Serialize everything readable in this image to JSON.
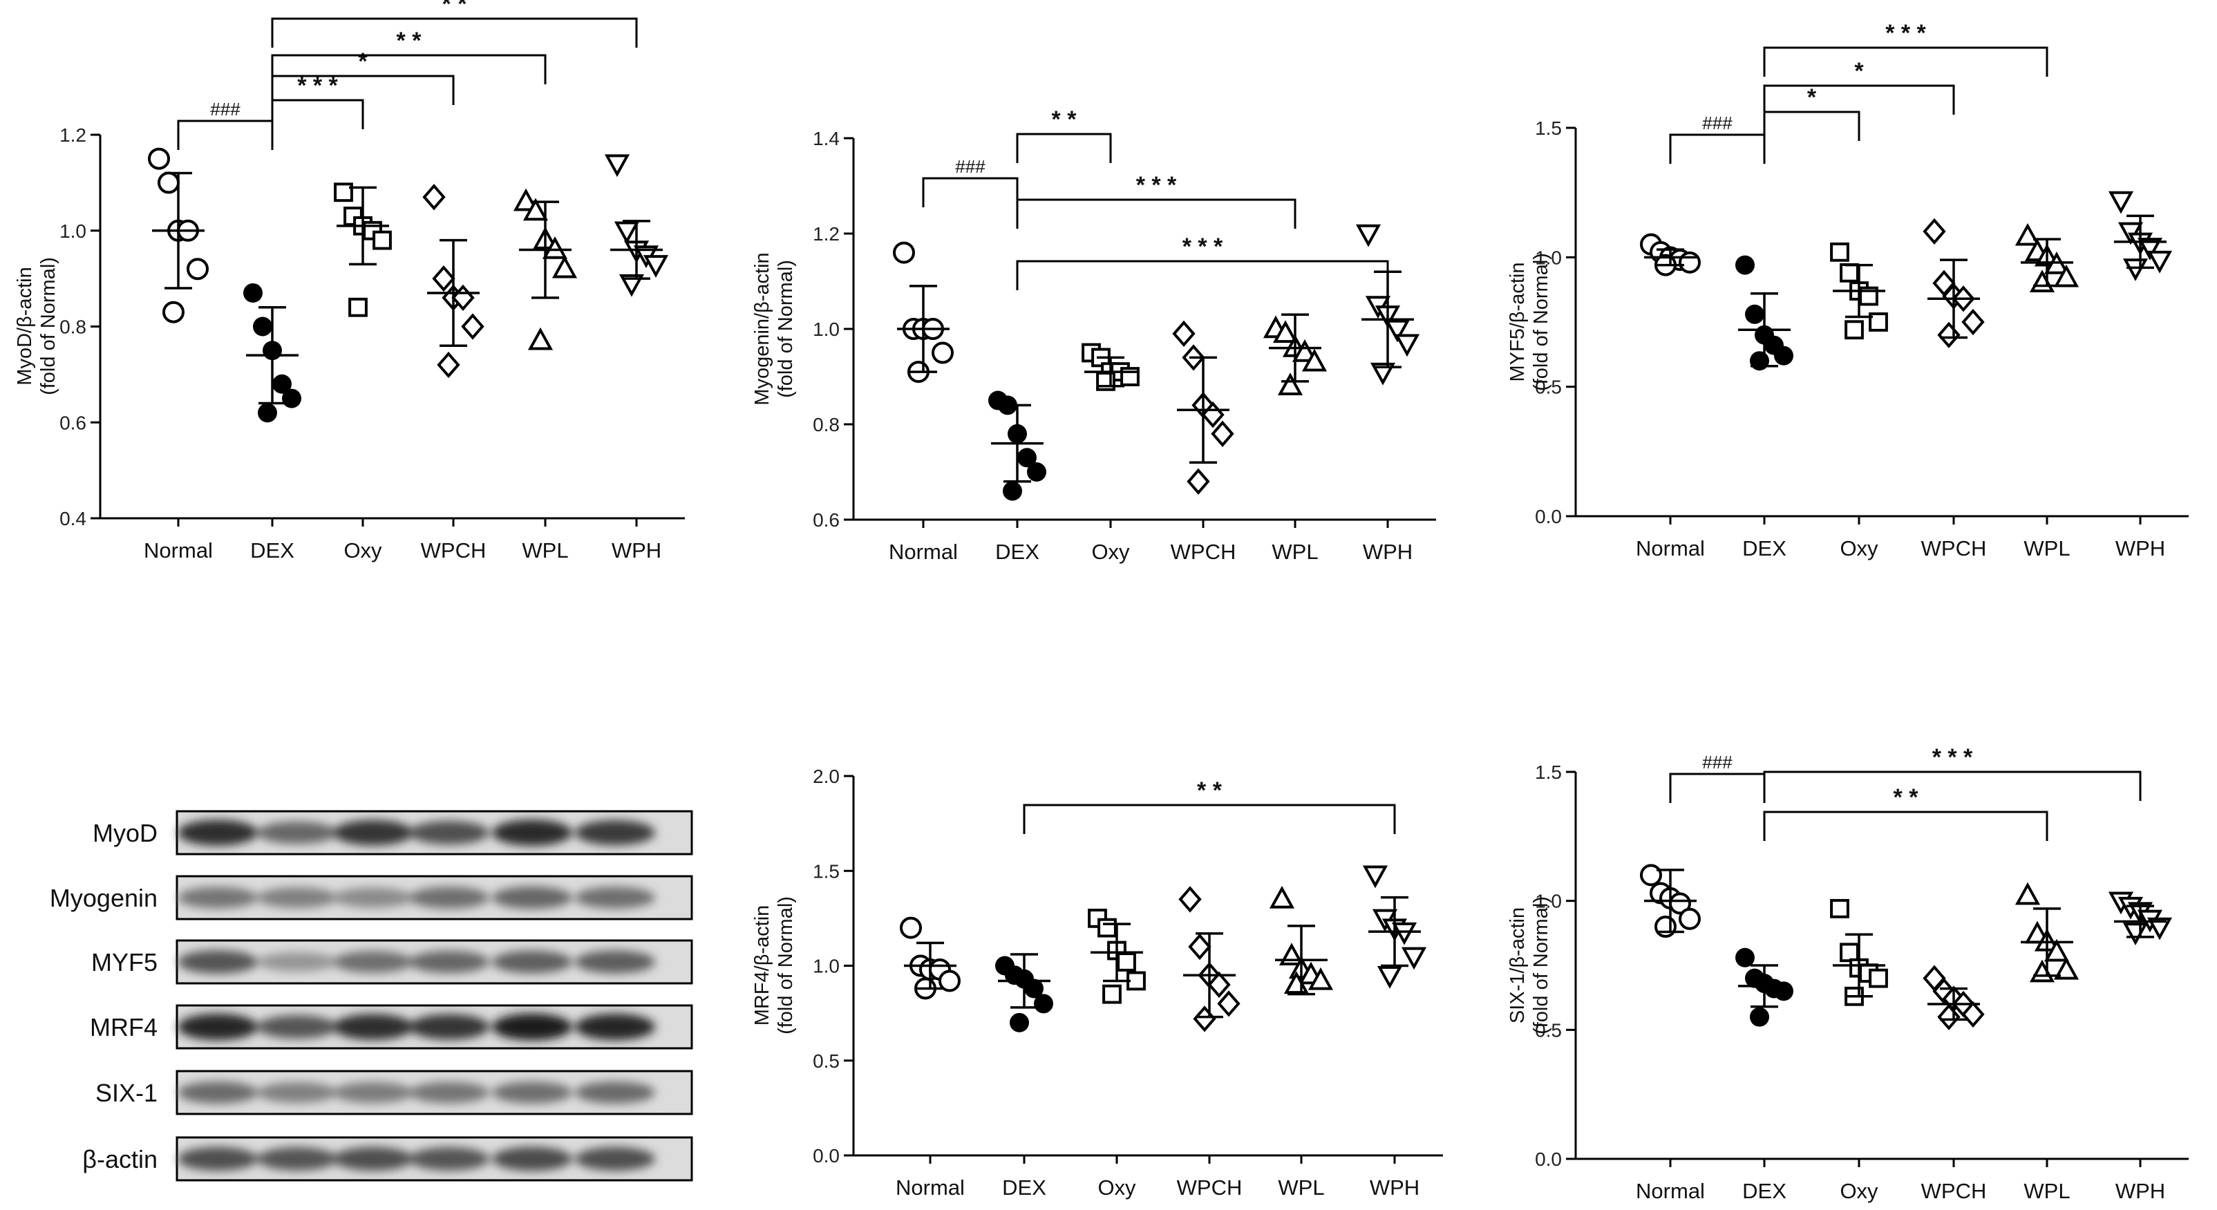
{
  "figure": {
    "categories": [
      "Normal",
      "DEX",
      "Oxy",
      "WPCH",
      "WPL",
      "WPH"
    ],
    "marker_shapes": [
      "circle-open",
      "circle-filled",
      "square-open",
      "diamond-open",
      "triangle-up-open",
      "triangle-down-open"
    ]
  },
  "chart_data": [
    {
      "id": "myod",
      "type": "scatter",
      "ylabel": "MyoD/β-actin",
      "ylabel2": "(fold of Normal)",
      "ylim": [
        0.4,
        1.2
      ],
      "yticks": [
        "0.4",
        "0.6",
        "0.8",
        "1.0",
        "1.2"
      ],
      "categories": [
        "Normal",
        "DEX",
        "Oxy",
        "WPCH",
        "WPL",
        "WPH"
      ],
      "points": [
        [
          1.15,
          1.1,
          1.0,
          1.0,
          0.92,
          0.83
        ],
        [
          0.87,
          0.8,
          0.75,
          0.68,
          0.65,
          0.62
        ],
        [
          1.08,
          1.03,
          1.01,
          1.0,
          0.98,
          0.84
        ],
        [
          1.07,
          0.9,
          0.86,
          0.86,
          0.8,
          0.72
        ],
        [
          1.06,
          1.04,
          0.98,
          0.96,
          0.92,
          0.77
        ],
        [
          1.14,
          1.0,
          0.96,
          0.95,
          0.93,
          0.89
        ]
      ],
      "means": [
        1.0,
        0.74,
        1.01,
        0.87,
        0.96,
        0.96
      ],
      "sds": [
        0.12,
        0.1,
        0.08,
        0.11,
        0.1,
        0.06
      ],
      "significance": [
        {
          "from": "Normal",
          "to": "DEX",
          "label": "###"
        },
        {
          "from": "DEX",
          "to": "Oxy",
          "label": "* * *"
        },
        {
          "from": "DEX",
          "to": "WPCH",
          "label": "*"
        },
        {
          "from": "DEX",
          "to": "WPL",
          "label": "* *"
        },
        {
          "from": "DEX",
          "to": "WPH",
          "label": "* *"
        }
      ]
    },
    {
      "id": "myogenin",
      "type": "scatter",
      "ylabel": "Myogenin/β-actin",
      "ylabel2": "(fold of Normal)",
      "ylim": [
        0.6,
        1.4
      ],
      "yticks": [
        "0.6",
        "0.8",
        "1.0",
        "1.2",
        "1.4"
      ],
      "categories": [
        "Normal",
        "DEX",
        "Oxy",
        "WPCH",
        "WPL",
        "WPH"
      ],
      "points": [
        [
          1.16,
          1.0,
          1.0,
          1.0,
          0.95,
          0.91
        ],
        [
          0.85,
          0.84,
          0.78,
          0.73,
          0.7,
          0.66
        ],
        [
          0.95,
          0.94,
          0.91,
          0.91,
          0.9,
          0.89
        ],
        [
          0.99,
          0.94,
          0.84,
          0.82,
          0.78,
          0.68
        ],
        [
          1.0,
          0.99,
          0.96,
          0.95,
          0.93,
          0.88
        ],
        [
          1.2,
          1.05,
          1.03,
          1.0,
          0.97,
          0.91
        ]
      ],
      "means": [
        1.0,
        0.76,
        0.91,
        0.83,
        0.96,
        1.02
      ],
      "sds": [
        0.09,
        0.08,
        0.03,
        0.11,
        0.07,
        0.1
      ],
      "significance": [
        {
          "from": "Normal",
          "to": "DEX",
          "label": "###"
        },
        {
          "from": "DEX",
          "to": "Oxy",
          "label": "* *"
        },
        {
          "from": "DEX",
          "to": "WPL",
          "label": "* * *"
        },
        {
          "from": "DEX",
          "to": "WPH",
          "label": "* * *"
        }
      ]
    },
    {
      "id": "myf5",
      "type": "scatter",
      "ylabel": "MYF5/β-actin",
      "ylabel2": "(fold of Normal)",
      "ylim": [
        0.0,
        1.5
      ],
      "yticks": [
        "0.0",
        "0.5",
        "1.0",
        "1.5"
      ],
      "categories": [
        "Normal",
        "DEX",
        "Oxy",
        "WPCH",
        "WPL",
        "WPH"
      ],
      "points": [
        [
          1.05,
          1.02,
          1.0,
          0.99,
          0.98,
          0.97
        ],
        [
          0.97,
          0.78,
          0.7,
          0.66,
          0.62,
          0.6
        ],
        [
          1.02,
          0.94,
          0.87,
          0.85,
          0.75,
          0.72
        ],
        [
          1.1,
          0.9,
          0.85,
          0.84,
          0.75,
          0.7
        ],
        [
          1.08,
          1.02,
          1.0,
          0.97,
          0.92,
          0.9
        ],
        [
          1.22,
          1.1,
          1.06,
          1.04,
          0.99,
          0.96
        ]
      ],
      "means": [
        1.0,
        0.72,
        0.87,
        0.84,
        0.98,
        1.06
      ],
      "sds": [
        0.03,
        0.14,
        0.1,
        0.15,
        0.09,
        0.1
      ],
      "significance": [
        {
          "from": "Normal",
          "to": "DEX",
          "label": "###"
        },
        {
          "from": "DEX",
          "to": "Oxy",
          "label": "*"
        },
        {
          "from": "DEX",
          "to": "WPCH",
          "label": "*"
        },
        {
          "from": "DEX",
          "to": "WPL",
          "label": "* * *"
        },
        {
          "from": "DEX",
          "to": "WPH",
          "label": "* * *"
        }
      ]
    },
    {
      "id": "mrf4",
      "type": "scatter",
      "ylabel": "MRF4/β-actin",
      "ylabel2": "(fold of Normal)",
      "ylim": [
        0.0,
        2.0
      ],
      "yticks": [
        "0.0",
        "0.5",
        "1.0",
        "1.5",
        "2.0"
      ],
      "categories": [
        "Normal",
        "DEX",
        "Oxy",
        "WPCH",
        "WPL",
        "WPH"
      ],
      "points": [
        [
          1.2,
          1.0,
          0.98,
          0.98,
          0.92,
          0.88
        ],
        [
          1.0,
          0.95,
          0.93,
          0.88,
          0.8,
          0.7
        ],
        [
          1.25,
          1.2,
          1.08,
          1.02,
          0.92,
          0.85
        ],
        [
          1.35,
          1.1,
          0.95,
          0.9,
          0.8,
          0.72
        ],
        [
          1.35,
          1.05,
          0.98,
          0.95,
          0.92,
          0.9
        ],
        [
          1.48,
          1.25,
          1.2,
          1.18,
          1.05,
          0.95
        ]
      ],
      "means": [
        1.0,
        0.92,
        1.07,
        0.95,
        1.03,
        1.18
      ],
      "sds": [
        0.12,
        0.14,
        0.15,
        0.22,
        0.18,
        0.18
      ],
      "significance": [
        {
          "from": "DEX",
          "to": "WPH",
          "label": "* *"
        }
      ]
    },
    {
      "id": "six1",
      "type": "scatter",
      "ylabel": "SIX-1/β-actin",
      "ylabel2": "(fold of Normal)",
      "ylim": [
        0.0,
        1.5
      ],
      "yticks": [
        "0.0",
        "0.5",
        "1.0",
        "1.5"
      ],
      "categories": [
        "Normal",
        "DEX",
        "Oxy",
        "WPCH",
        "WPL",
        "WPH"
      ],
      "points": [
        [
          1.1,
          1.03,
          1.01,
          0.99,
          0.93,
          0.9
        ],
        [
          0.78,
          0.7,
          0.68,
          0.66,
          0.65,
          0.55
        ],
        [
          0.97,
          0.8,
          0.74,
          0.72,
          0.7,
          0.63
        ],
        [
          0.7,
          0.65,
          0.62,
          0.6,
          0.56,
          0.55
        ],
        [
          1.02,
          0.87,
          0.84,
          0.8,
          0.73,
          0.72
        ],
        [
          1.0,
          0.98,
          0.96,
          0.93,
          0.9,
          0.88
        ]
      ],
      "means": [
        1.0,
        0.67,
        0.75,
        0.6,
        0.84,
        0.92
      ],
      "sds": [
        0.12,
        0.08,
        0.12,
        0.06,
        0.13,
        0.06
      ],
      "significance": [
        {
          "from": "Normal",
          "to": "DEX",
          "label": "###"
        },
        {
          "from": "DEX",
          "to": "WPL",
          "label": "* *"
        },
        {
          "from": "DEX",
          "to": "WPH",
          "label": "* * *"
        }
      ]
    }
  ],
  "western_blot": {
    "bands": [
      "MyoD",
      "Myogenin",
      "MYF5",
      "MRF4",
      "SIX-1",
      "β-actin"
    ],
    "intensity": [
      [
        0.88,
        0.62,
        0.85,
        0.72,
        0.9,
        0.82
      ],
      [
        0.55,
        0.5,
        0.45,
        0.58,
        0.62,
        0.58
      ],
      [
        0.7,
        0.4,
        0.58,
        0.62,
        0.65,
        0.66
      ],
      [
        0.92,
        0.7,
        0.88,
        0.85,
        0.95,
        0.92
      ],
      [
        0.6,
        0.5,
        0.52,
        0.55,
        0.58,
        0.6
      ],
      [
        0.72,
        0.7,
        0.72,
        0.7,
        0.74,
        0.72
      ]
    ]
  }
}
